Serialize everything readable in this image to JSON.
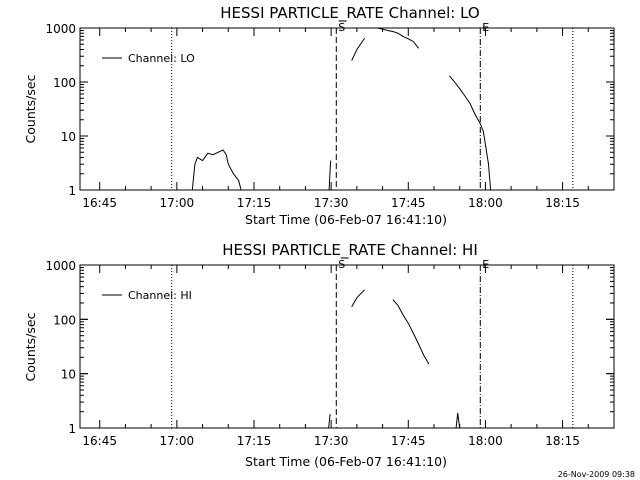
{
  "page": {
    "timestamp": "26-Nov-2009 09:38",
    "colors": {
      "background": "#ffffff",
      "foreground": "#000000"
    }
  },
  "chart_data": [
    {
      "type": "line",
      "title": "HESSI PARTICLE_RATE Channel: LO",
      "xlabel": "Start Time (06-Feb-07 16:41:10)",
      "ylabel": "Counts/sec",
      "xlim": [
        "16:41:10",
        "18:25:00"
      ],
      "ylim": [
        1,
        1000
      ],
      "yscale": "log",
      "xticks": [
        "16:45",
        "17:00",
        "17:15",
        "17:30",
        "17:45",
        "18:00",
        "18:15"
      ],
      "yticks": [
        "1",
        "10",
        "100",
        "1000"
      ],
      "legend": {
        "position": "top-left",
        "entries": [
          "Channel: LO"
        ]
      },
      "markers": [
        {
          "time": "17:31",
          "label": "S",
          "style": "dashed"
        },
        {
          "time": "17:59",
          "label": "E",
          "style": "dash-dot"
        }
      ],
      "vlines": [
        {
          "time": "16:59",
          "style": "dotted"
        },
        {
          "time": "18:17",
          "style": "dotted"
        }
      ],
      "series": [
        {
          "name": "Channel: LO",
          "segments": [
            [
              [
                "17:03",
                1
              ],
              [
                "17:03.5",
                3.0
              ],
              [
                "17:04",
                4.0
              ],
              [
                "17:05",
                3.5
              ],
              [
                "17:06",
                4.8
              ],
              [
                "17:07",
                4.5
              ],
              [
                "17:08",
                5.0
              ],
              [
                "17:09",
                5.5
              ],
              [
                "17:09.6",
                4.5
              ],
              [
                "17:10",
                3.0
              ],
              [
                "17:11",
                2.0
              ],
              [
                "17:12",
                1.5
              ],
              [
                "17:12.5",
                1
              ]
            ],
            [
              [
                "17:29.6",
                1
              ],
              [
                "17:29.9",
                3.5
              ]
            ],
            [
              [
                "17:34",
                250
              ],
              [
                "17:35",
                400
              ],
              [
                "17:36.5",
                650
              ]
            ],
            [
              [
                "17:39",
                1000
              ],
              [
                "17:40",
                950
              ],
              [
                "17:41",
                900
              ],
              [
                "17:42",
                860
              ],
              [
                "17:43",
                800
              ],
              [
                "17:44",
                700
              ],
              [
                "17:45",
                630
              ],
              [
                "17:46",
                560
              ],
              [
                "17:47",
                420
              ]
            ],
            [
              [
                "17:53",
                130
              ],
              [
                "17:54",
                100
              ],
              [
                "17:55",
                75
              ],
              [
                "17:56",
                55
              ],
              [
                "17:57",
                40
              ],
              [
                "17:58",
                25
              ],
              [
                "17:59",
                17
              ],
              [
                "17:59.6",
                12
              ],
              [
                "18:00",
                7
              ],
              [
                "18:00.6",
                3
              ],
              [
                "18:01",
                1
              ]
            ]
          ]
        }
      ]
    },
    {
      "type": "line",
      "title": "HESSI PARTICLE_RATE Channel: HI",
      "xlabel": "Start Time (06-Feb-07 16:41:10)",
      "ylabel": "Counts/sec",
      "xlim": [
        "16:41:10",
        "18:25:00"
      ],
      "ylim": [
        1,
        1000
      ],
      "yscale": "log",
      "xticks": [
        "16:45",
        "17:00",
        "17:15",
        "17:30",
        "17:45",
        "18:00",
        "18:15"
      ],
      "yticks": [
        "1",
        "10",
        "100",
        "1000"
      ],
      "legend": {
        "position": "top-left",
        "entries": [
          "Channel: HI"
        ]
      },
      "markers": [
        {
          "time": "17:31",
          "label": "S",
          "style": "dashed"
        },
        {
          "time": "17:59",
          "label": "E",
          "style": "dash-dot"
        }
      ],
      "vlines": [
        {
          "time": "16:59",
          "style": "dotted"
        },
        {
          "time": "18:17",
          "style": "dotted"
        }
      ],
      "series": [
        {
          "name": "Channel: HI",
          "segments": [
            [
              [
                "17:29.5",
                1
              ],
              [
                "17:29.8",
                1.8
              ]
            ],
            [
              [
                "17:34",
                170
              ],
              [
                "17:35",
                250
              ],
              [
                "17:36.5",
                350
              ]
            ],
            [
              [
                "17:42",
                230
              ],
              [
                "17:43",
                180
              ],
              [
                "17:44",
                120
              ],
              [
                "17:45",
                85
              ],
              [
                "17:46",
                55
              ],
              [
                "17:47",
                35
              ],
              [
                "17:48",
                22
              ],
              [
                "17:49",
                15
              ]
            ],
            [
              [
                "17:54.3",
                1
              ],
              [
                "17:54.6",
                1.9
              ],
              [
                "17:55",
                1
              ]
            ]
          ]
        }
      ]
    }
  ]
}
